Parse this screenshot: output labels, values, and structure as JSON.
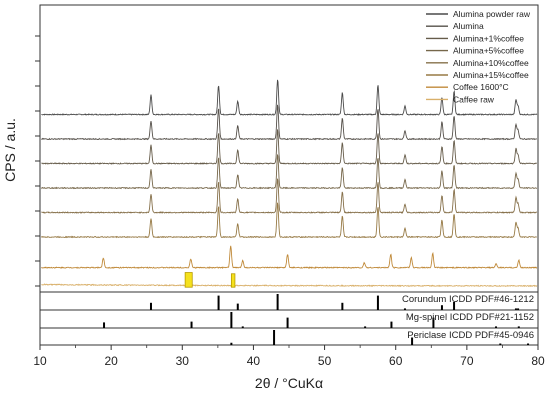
{
  "chart_data": {
    "type": "line",
    "title": "",
    "xlabel": "2θ / °CuKα",
    "ylabel": "CPS / a.u.",
    "xlim": [
      10,
      80
    ],
    "x_ticks": [
      10,
      20,
      30,
      40,
      50,
      60,
      70,
      80
    ],
    "grid": false,
    "legend_position": "top-right",
    "series": [
      {
        "name": "Alumina powder raw",
        "color": "#4a4a4a",
        "offset": 7,
        "peaks": [
          [
            25.6,
            0.8
          ],
          [
            35.1,
            1.2
          ],
          [
            37.8,
            0.55
          ],
          [
            43.4,
            1.45
          ],
          [
            52.5,
            0.9
          ],
          [
            57.5,
            1.2
          ],
          [
            61.3,
            0.35
          ],
          [
            66.5,
            0.7
          ],
          [
            68.2,
            0.95
          ],
          [
            76.9,
            0.6
          ],
          [
            77.2,
            0.35
          ]
        ]
      },
      {
        "name": "Alumina",
        "color": "#55504a",
        "offset": 6,
        "peaks": [
          [
            25.6,
            0.75
          ],
          [
            35.1,
            1.25
          ],
          [
            37.8,
            0.55
          ],
          [
            43.4,
            1.4
          ],
          [
            52.5,
            0.85
          ],
          [
            57.5,
            1.25
          ],
          [
            61.3,
            0.35
          ],
          [
            66.5,
            0.7
          ],
          [
            68.2,
            0.95
          ],
          [
            76.9,
            0.6
          ],
          [
            77.2,
            0.35
          ]
        ]
      },
      {
        "name": "Alumina+1%coffee",
        "color": "#665c4a",
        "offset": 5,
        "peaks": [
          [
            25.6,
            0.75
          ],
          [
            35.1,
            1.25
          ],
          [
            37.8,
            0.55
          ],
          [
            43.4,
            1.4
          ],
          [
            52.5,
            0.85
          ],
          [
            57.5,
            1.25
          ],
          [
            61.3,
            0.35
          ],
          [
            66.5,
            0.7
          ],
          [
            68.2,
            0.95
          ],
          [
            76.9,
            0.6
          ],
          [
            77.2,
            0.35
          ]
        ]
      },
      {
        "name": "Alumina+5%coffee",
        "color": "#76674a",
        "offset": 4,
        "peaks": [
          [
            25.6,
            0.75
          ],
          [
            35.1,
            1.25
          ],
          [
            37.8,
            0.55
          ],
          [
            43.4,
            1.4
          ],
          [
            52.5,
            0.85
          ],
          [
            57.5,
            1.25
          ],
          [
            61.3,
            0.35
          ],
          [
            66.5,
            0.7
          ],
          [
            68.2,
            0.95
          ],
          [
            76.9,
            0.6
          ],
          [
            77.2,
            0.35
          ]
        ]
      },
      {
        "name": "Alumina+10%coffee",
        "color": "#86704a",
        "offset": 3,
        "peaks": [
          [
            25.6,
            0.75
          ],
          [
            35.1,
            1.25
          ],
          [
            37.8,
            0.55
          ],
          [
            43.4,
            1.4
          ],
          [
            52.5,
            0.85
          ],
          [
            57.5,
            1.25
          ],
          [
            61.3,
            0.35
          ],
          [
            66.5,
            0.7
          ],
          [
            68.2,
            0.95
          ],
          [
            76.9,
            0.6
          ],
          [
            77.2,
            0.35
          ]
        ]
      },
      {
        "name": "Alumina+15%coffee",
        "color": "#977a45",
        "offset": 2,
        "peaks": [
          [
            25.6,
            0.75
          ],
          [
            35.1,
            1.25
          ],
          [
            37.8,
            0.55
          ],
          [
            43.4,
            1.4
          ],
          [
            52.5,
            0.85
          ],
          [
            57.5,
            1.25
          ],
          [
            61.3,
            0.35
          ],
          [
            66.5,
            0.7
          ],
          [
            68.2,
            0.95
          ],
          [
            76.9,
            0.6
          ],
          [
            77.2,
            0.35
          ]
        ]
      },
      {
        "name": "Coffee 1600°C",
        "color": "#c08a3a",
        "offset": 0.75,
        "peaks": [
          [
            18.9,
            0.4
          ],
          [
            31.2,
            0.35
          ],
          [
            36.8,
            0.9
          ],
          [
            38.5,
            0.3
          ],
          [
            44.8,
            0.55
          ],
          [
            55.6,
            0.2
          ],
          [
            59.3,
            0.55
          ],
          [
            62.2,
            0.4
          ],
          [
            65.2,
            0.6
          ],
          [
            74.1,
            0.15
          ],
          [
            77.3,
            0.3
          ]
        ]
      },
      {
        "name": "Caffee raw",
        "color": "#d9b06a",
        "offset": 0,
        "peaks": []
      }
    ],
    "highlight_boxes": [
      {
        "x": [
          30.4,
          31.4
        ],
        "y": [
          -0.05,
          0.55
        ],
        "color": "#f5e11d"
      },
      {
        "x": [
          36.9,
          37.4
        ],
        "y": [
          -0.05,
          0.5
        ],
        "color": "#f5e11d"
      }
    ],
    "reference_patterns": [
      {
        "name": "Corundum ICDD PDF#46-1212",
        "lines": [
          [
            25.6,
            0.45
          ],
          [
            35.1,
            0.9
          ],
          [
            37.8,
            0.4
          ],
          [
            43.4,
            1.0
          ],
          [
            52.5,
            0.45
          ],
          [
            57.5,
            0.9
          ],
          [
            61.3,
            0.1
          ],
          [
            66.5,
            0.3
          ],
          [
            68.2,
            0.5
          ],
          [
            76.9,
            0.1
          ],
          [
            77.2,
            0.1
          ]
        ]
      },
      {
        "name": "Mg-spinel ICDD PDF#21-1152",
        "lines": [
          [
            19.0,
            0.35
          ],
          [
            31.3,
            0.4
          ],
          [
            36.9,
            1.0
          ],
          [
            38.5,
            0.1
          ],
          [
            44.8,
            0.65
          ],
          [
            55.7,
            0.1
          ],
          [
            59.4,
            0.4
          ],
          [
            65.3,
            0.65
          ],
          [
            74.1,
            0.1
          ],
          [
            77.3,
            0.1
          ]
        ]
      },
      {
        "name": "Periclase ICDD PDF#45-0946",
        "lines": [
          [
            36.9,
            0.15
          ],
          [
            42.9,
            1.0
          ],
          [
            62.3,
            0.5
          ],
          [
            74.7,
            0.1
          ],
          [
            78.6,
            0.1
          ]
        ]
      }
    ]
  }
}
